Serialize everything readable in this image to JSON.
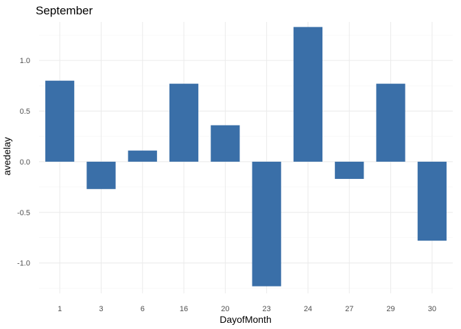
{
  "chart_data": {
    "type": "bar",
    "title": "September",
    "xlabel": "DayofMonth",
    "ylabel": "avedelay",
    "categories": [
      "1",
      "3",
      "6",
      "16",
      "20",
      "23",
      "24",
      "27",
      "29",
      "30"
    ],
    "values": [
      0.8,
      -0.27,
      0.11,
      0.77,
      0.36,
      -1.23,
      1.33,
      -0.17,
      0.77,
      -0.78
    ],
    "ylim": [
      -1.3,
      1.38
    ],
    "yticks": [
      -1.0,
      -0.5,
      0.0,
      0.5,
      1.0
    ],
    "ytick_labels": [
      "-1.0",
      "-0.5",
      "0.0",
      "0.5",
      "1.0"
    ],
    "grid": true,
    "legend": "none",
    "bar_color": "#3A6FA8",
    "background_color": "#FFFFFF",
    "grid_color": "#EBEBEB"
  }
}
